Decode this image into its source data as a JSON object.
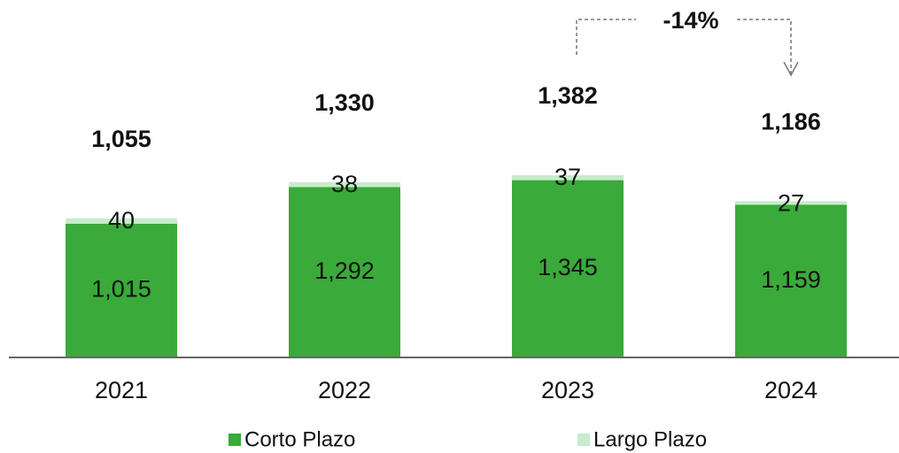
{
  "chart_data": {
    "type": "bar",
    "stacked": true,
    "categories": [
      "2021",
      "2022",
      "2023",
      "2024"
    ],
    "series": [
      {
        "name": "Corto Plazo",
        "color": "#3aaa3a",
        "values": [
          1015,
          1292,
          1345,
          1159
        ],
        "value_labels": [
          "1,015",
          "1,292",
          "1,345",
          "1,159"
        ]
      },
      {
        "name": "Largo Plazo",
        "color": "#c6eccb",
        "values": [
          40,
          38,
          37,
          27
        ]
      }
    ],
    "totals": [
      1055,
      1330,
      1382,
      1186
    ],
    "total_labels": [
      "1,055",
      "1,330",
      "1,382",
      "1,186"
    ],
    "annotation": "-14%",
    "ylim": [
      0,
      2000
    ],
    "legend": "bottom"
  }
}
